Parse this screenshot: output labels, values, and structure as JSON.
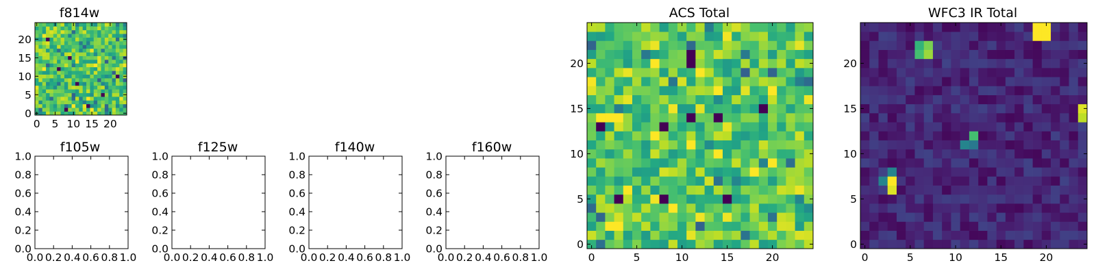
{
  "chart_data": [
    {
      "id": "f814w",
      "type": "heatmap",
      "title": "f814w",
      "colormap": "viridis",
      "grid_size": [
        25,
        25
      ],
      "xlim": [
        -0.5,
        24.5
      ],
      "ylim": [
        -0.5,
        24.5
      ],
      "xticks": [
        0,
        5,
        10,
        15,
        20
      ],
      "yticks": [
        0,
        5,
        10,
        15,
        20
      ],
      "xtick_labels": [
        "0",
        "5",
        "10",
        "15",
        "20"
      ],
      "ytick_labels": [
        "0",
        "5",
        "10",
        "15",
        "20"
      ],
      "value_range": [
        0,
        1
      ],
      "values_note": "noise-like field, mostly 0.6–0.9",
      "seed": 7
    },
    {
      "id": "acs_total",
      "type": "heatmap",
      "title": "ACS Total",
      "colormap": "viridis",
      "grid_size": [
        25,
        25
      ],
      "xlim": [
        -0.5,
        24.5
      ],
      "ylim": [
        -0.5,
        24.5
      ],
      "xticks": [
        0,
        5,
        10,
        15,
        20
      ],
      "yticks": [
        0,
        5,
        10,
        15,
        20
      ],
      "xtick_labels": [
        "0",
        "5",
        "10",
        "15",
        "20"
      ],
      "ytick_labels": [
        "0",
        "5",
        "10",
        "15",
        "20"
      ],
      "value_range": [
        0,
        1
      ],
      "seed": 13,
      "dark_pixels": [
        [
          11,
          20
        ],
        [
          14,
          14
        ],
        [
          11,
          14
        ],
        [
          1,
          13
        ],
        [
          8,
          13
        ],
        [
          8,
          5
        ],
        [
          15,
          5
        ],
        [
          11,
          21
        ],
        [
          19,
          15
        ],
        [
          3,
          5
        ]
      ],
      "bright_pixels": [
        [
          7,
          20
        ],
        [
          14,
          17
        ],
        [
          20,
          17
        ],
        [
          11,
          11
        ],
        [
          2,
          2
        ],
        [
          3,
          2
        ],
        [
          1,
          14
        ],
        [
          2,
          14
        ],
        [
          3,
          14
        ],
        [
          9,
          4
        ],
        [
          18,
          8
        ]
      ]
    },
    {
      "id": "wfc3_ir_total",
      "type": "heatmap",
      "title": "WFC3 IR Total",
      "colormap": "viridis",
      "grid_size": [
        25,
        25
      ],
      "xlim": [
        -0.5,
        24.5
      ],
      "ylim": [
        -0.5,
        24.5
      ],
      "xticks": [
        0,
        5,
        10,
        15,
        20
      ],
      "yticks": [
        0,
        5,
        10,
        15,
        20
      ],
      "xtick_labels": [
        "0",
        "5",
        "10",
        "15",
        "20"
      ],
      "ytick_labels": [
        "0",
        "5",
        "10",
        "15",
        "20"
      ],
      "value_range": [
        0,
        1
      ],
      "background_range": [
        0.02,
        0.2
      ],
      "seed": 29,
      "hot_pixels": [
        {
          "x": 19,
          "y": 24,
          "v": 1.0
        },
        {
          "x": 20,
          "y": 24,
          "v": 1.0
        },
        {
          "x": 19,
          "y": 23,
          "v": 1.0
        },
        {
          "x": 20,
          "y": 23,
          "v": 1.0
        },
        {
          "x": 6,
          "y": 22,
          "v": 0.65
        },
        {
          "x": 7,
          "y": 22,
          "v": 0.8
        },
        {
          "x": 6,
          "y": 21,
          "v": 0.7
        },
        {
          "x": 7,
          "y": 21,
          "v": 0.85
        },
        {
          "x": 24,
          "y": 15,
          "v": 0.95
        },
        {
          "x": 24,
          "y": 14,
          "v": 0.9
        },
        {
          "x": 12,
          "y": 12,
          "v": 0.7
        },
        {
          "x": 11,
          "y": 11,
          "v": 0.45
        },
        {
          "x": 12,
          "y": 11,
          "v": 0.4
        },
        {
          "x": 3,
          "y": 8,
          "v": 0.45
        },
        {
          "x": 2,
          "y": 7,
          "v": 0.45
        },
        {
          "x": 3,
          "y": 7,
          "v": 1.0
        },
        {
          "x": 3,
          "y": 6,
          "v": 0.95
        }
      ]
    },
    {
      "id": "f105w",
      "type": "empty",
      "title": "f105w",
      "xlim": [
        0,
        1
      ],
      "ylim": [
        0,
        1
      ],
      "xtick_labels": [
        "0.0",
        "0.2",
        "0.4",
        "0.6",
        "0.8",
        "1.0"
      ],
      "ytick_labels": [
        "0.0",
        "0.2",
        "0.4",
        "0.6",
        "0.8",
        "1.0"
      ]
    },
    {
      "id": "f125w",
      "type": "empty",
      "title": "f125w",
      "xlim": [
        0,
        1
      ],
      "ylim": [
        0,
        1
      ],
      "xtick_labels": [
        "0.0",
        "0.2",
        "0.4",
        "0.6",
        "0.8",
        "1.0"
      ],
      "ytick_labels": [
        "0.0",
        "0.2",
        "0.4",
        "0.6",
        "0.8",
        "1.0"
      ]
    },
    {
      "id": "f140w",
      "type": "empty",
      "title": "f140w",
      "xlim": [
        0,
        1
      ],
      "ylim": [
        0,
        1
      ],
      "xtick_labels": [
        "0.0",
        "0.2",
        "0.4",
        "0.6",
        "0.8",
        "1.0"
      ],
      "ytick_labels": [
        "0.0",
        "0.2",
        "0.4",
        "0.6",
        "0.8",
        "1.0"
      ]
    },
    {
      "id": "f160w",
      "type": "empty",
      "title": "f160w",
      "xlim": [
        0,
        1
      ],
      "ylim": [
        0,
        1
      ],
      "xtick_labels": [
        "0.0",
        "0.2",
        "0.4",
        "0.6",
        "0.8",
        "1.0"
      ],
      "ytick_labels": [
        "0.0",
        "0.2",
        "0.4",
        "0.6",
        "0.8",
        "1.0"
      ]
    }
  ]
}
